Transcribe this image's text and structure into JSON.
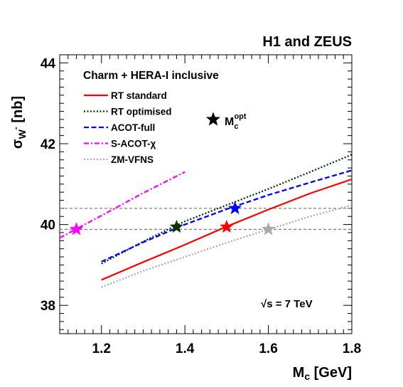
{
  "chart_data": {
    "type": "line",
    "title": "H1 and ZEUS",
    "subtitle": "Charm + HERA-I inclusive",
    "annotation": "√s = 7 TeV",
    "xlabel": "M_c [GeV]",
    "ylabel": "σ_{W^-} [nb]",
    "xlim": [
      1.1,
      1.8
    ],
    "ylim": [
      37.3,
      44.2
    ],
    "x_ticks": [
      1.2,
      1.4,
      1.6,
      1.8
    ],
    "y_ticks": [
      38,
      40,
      42,
      44
    ],
    "grid": false,
    "legend_position": "top-left",
    "reference_lines": [
      40.4,
      39.88
    ],
    "series": [
      {
        "name": "RT standard",
        "style": "solid",
        "color": "#ff0000",
        "x": [
          1.2,
          1.3,
          1.4,
          1.5,
          1.6,
          1.7,
          1.8
        ],
        "y": [
          38.63,
          39.07,
          39.5,
          39.95,
          40.37,
          40.77,
          41.12
        ]
      },
      {
        "name": "RT optimised",
        "style": "dotted",
        "color": "#003300",
        "x": [
          1.2,
          1.3,
          1.4,
          1.5,
          1.6,
          1.7,
          1.8
        ],
        "y": [
          39.03,
          39.58,
          40.08,
          40.48,
          40.88,
          41.3,
          41.73
        ]
      },
      {
        "name": "ACOT-full",
        "style": "dashed",
        "color": "#0000ff",
        "x": [
          1.2,
          1.3,
          1.4,
          1.5,
          1.6,
          1.7,
          1.8
        ],
        "y": [
          39.08,
          39.56,
          40.0,
          40.38,
          40.73,
          41.04,
          41.34
        ]
      },
      {
        "name": "S-ACOT-χ",
        "style": "dash-dot",
        "color": "#ff00ff",
        "x": [
          1.1,
          1.2,
          1.3,
          1.4
        ],
        "y": [
          39.67,
          40.22,
          40.78,
          41.3
        ]
      },
      {
        "name": "ZM-VFNS",
        "style": "dotted",
        "color": "#aaaaaa",
        "x": [
          1.2,
          1.3,
          1.4,
          1.5,
          1.6,
          1.7,
          1.8
        ],
        "y": [
          38.45,
          38.85,
          39.2,
          39.55,
          39.88,
          40.2,
          40.48
        ]
      }
    ],
    "optimal_points_label": "M_c^opt",
    "optimal_points": [
      {
        "series": "S-ACOT-χ",
        "x": 1.14,
        "y": 39.88,
        "color": "#ff00ff"
      },
      {
        "series": "RT optimised",
        "x": 1.38,
        "y": 39.94,
        "color": "#003300"
      },
      {
        "series": "RT standard",
        "x": 1.5,
        "y": 39.94,
        "color": "#ff0000"
      },
      {
        "series": "ACOT-full",
        "x": 1.52,
        "y": 40.4,
        "color": "#0000ff"
      },
      {
        "series": "ZM-VFNS",
        "x": 1.6,
        "y": 39.88,
        "color": "#aaaaaa"
      }
    ],
    "legend_marker": {
      "label": "M_c^opt",
      "color": "#000000"
    }
  }
}
